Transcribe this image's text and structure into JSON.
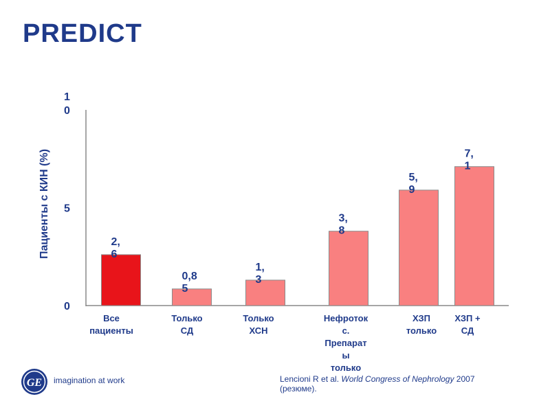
{
  "slide": {
    "title": "PREDICT",
    "logo_text": "GE",
    "tagline": "imagination at work",
    "citation": {
      "authors": "Lencioni R et al. ",
      "journal": "World Congress of Nephrology",
      "year_note": " 2007 (резюме)."
    }
  },
  "colors": {
    "title": "#1f3a8a",
    "highlight_bar": "#e8141a",
    "bar": "#f98080",
    "label": "#1f3a8a",
    "axis": "#888888"
  },
  "chart_data": {
    "type": "bar",
    "title": "",
    "ylabel": "Пациенты с КИН (%)",
    "ylim": [
      0,
      10
    ],
    "ytick_labels": [
      {
        "value": 0,
        "lines": [
          "0"
        ]
      },
      {
        "value": 5,
        "lines": [
          "5"
        ]
      },
      {
        "value": 10,
        "lines": [
          "1",
          "0"
        ]
      }
    ],
    "categories": [
      {
        "lines": [
          "Все",
          "пациенты"
        ]
      },
      {
        "lines": [
          "Только",
          "СД"
        ]
      },
      {
        "lines": [
          "Только",
          "ХСН"
        ]
      },
      {
        "lines": [
          "Нефроток",
          "с.",
          "Препарат",
          "ы",
          "только"
        ]
      },
      {
        "lines": [
          "ХЗП",
          "только"
        ]
      },
      {
        "lines": [
          "ХЗП +",
          "СД"
        ]
      }
    ],
    "values": [
      2.6,
      0.85,
      1.3,
      3.8,
      5.9,
      7.1
    ],
    "value_labels": [
      [
        "2,",
        "6"
      ],
      [
        "0,8",
        "5"
      ],
      [
        "1,",
        "3"
      ],
      [
        "3,",
        "8"
      ],
      [
        "5,",
        "9"
      ],
      [
        "7,",
        "1"
      ]
    ],
    "highlight_index": 0
  }
}
